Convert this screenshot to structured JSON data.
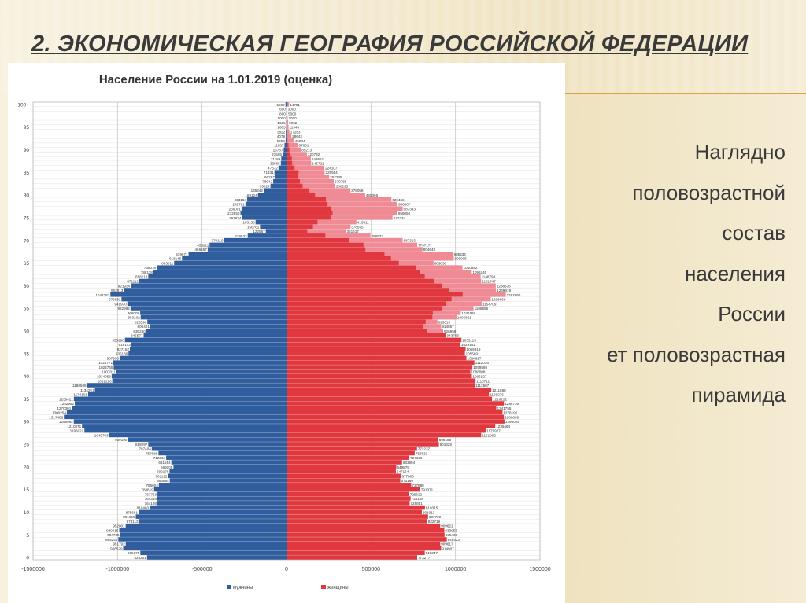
{
  "slide": {
    "title": "2. ЭКОНОМИЧЕСКАЯ ГЕОГРАФИЯ РОССИЙСКОЙ ФЕДЕРАЦИИ",
    "side_text": [
      "Наглядно",
      "половозрастной",
      "состав",
      "населения",
      "России",
      "ет половозрастная",
      "пирамида"
    ]
  },
  "colors": {
    "male": "#2f5d9e",
    "female": "#e0383e",
    "female_light": "#f08a94",
    "grid": "#c8c8c8",
    "accent": "#d9a441"
  },
  "chart_data": {
    "type": "bar",
    "orientation": "horizontal-pyramid",
    "title": "Население России на 1.01.2019 (оценка)",
    "xlim": [
      -1500000,
      1500000
    ],
    "x_ticks": [
      "-1500000",
      "-1000000",
      "-500000",
      "0",
      "500000",
      "1000000",
      "1500000"
    ],
    "y_ticks": [
      "0",
      "5",
      "10",
      "15",
      "20",
      "25",
      "30",
      "35",
      "40",
      "45",
      "50",
      "55",
      "60",
      "65",
      "70",
      "75",
      "80",
      "85",
      "90",
      "95",
      "100+"
    ],
    "legend": [
      "мужчины",
      "женщины"
    ],
    "legend_position": "bottom",
    "grid": true,
    "ages": [
      0,
      1,
      2,
      3,
      4,
      5,
      6,
      7,
      8,
      9,
      10,
      11,
      12,
      13,
      14,
      15,
      16,
      17,
      18,
      19,
      20,
      21,
      22,
      23,
      24,
      25,
      26,
      27,
      28,
      29,
      30,
      31,
      32,
      33,
      34,
      35,
      36,
      37,
      38,
      39,
      40,
      41,
      42,
      43,
      44,
      45,
      46,
      47,
      48,
      49,
      50,
      51,
      52,
      53,
      54,
      55,
      56,
      57,
      58,
      59,
      60,
      61,
      62,
      63,
      64,
      65,
      66,
      67,
      68,
      69,
      70,
      71,
      72,
      73,
      74,
      75,
      76,
      77,
      78,
      79,
      80,
      81,
      82,
      83,
      84,
      85,
      86,
      87,
      88,
      89,
      90,
      91,
      92,
      93,
      94,
      95,
      96,
      97,
      98,
      99,
      100
    ],
    "male": [
      825301,
      865175,
      966529,
      951792,
      995240,
      984785,
      989915,
      952001,
      873113,
      891959,
      875661,
      810460,
      764128,
      764318,
      763723,
      783819,
      755604,
      690854,
      701192,
      692179,
      669105,
      681554,
      712364,
      757689,
      797404,
      818297,
      939190,
      1049703,
      1196022,
      1210371,
      1258992,
      1317488,
      1300254,
      1270301,
      1252952,
      1258421,
      1174191,
      1134251,
      1180508,
      1031226,
      1034958,
      1007011,
      1022765,
      1024771,
      987938,
      935186,
      927152,
      918143,
      955998,
      845577,
      830240,
      806401,
      823596,
      863102,
      866008,
      922992,
      941970,
      976681,
      1042281,
      962813,
      921934,
      871112,
      818218,
      788118,
      768016,
      665011,
      618149,
      579671,
      466557,
      455211,
      370119,
      229532,
      122567,
      156761,
      183130,
      263634,
      272550,
      266001,
      242781,
      233184,
      169124,
      135342,
      95024,
      78942,
      66287,
      71331,
      47372,
      33565,
      31189,
      23565,
      16787,
      11887,
      5359,
      4078,
      3822,
      1605,
      1605,
      1000,
      800,
      600,
      5892
    ],
    "female": [
      773277,
      818247,
      914907,
      909617,
      948423,
      935408,
      933953,
      909621,
      832719,
      837700,
      801013,
      819315,
      728851,
      734188,
      725622,
      791071,
      737888,
      673169,
      677800,
      647164,
      649875,
      683994,
      727136,
      758832,
      772237,
      901829,
      898185,
      1151902,
      1179927,
      1235464,
      1290025,
      1286699,
      1278192,
      1241755,
      1286739,
      1216222,
      1198276,
      1211888,
      1113507,
      1118711,
      1096927,
      1088008,
      1099898,
      1112016,
      1064627,
      1055691,
      1059919,
      1029141,
      1035115,
      943793,
      926959,
      914857,
      893013,
      1005861,
      1031168,
      1106856,
      1154709,
      1208860,
      1297866,
      1239819,
      1238376,
      1151747,
      1148798,
      1096245,
      1040882,
      869836,
      990005,
      985334,
      804643,
      773717,
      687313,
      496533,
      351617,
      378555,
      413311,
      627434,
      656050,
      687343,
      656807,
      620466,
      465066,
      378058,
      288223,
      279785,
      252235,
      225554,
      224107,
      145721,
      143651,
      120732,
      85213,
      67801,
      45634,
      28642,
      17283,
      11946,
      9992,
      7000,
      5000,
      3000,
      14701
    ]
  }
}
